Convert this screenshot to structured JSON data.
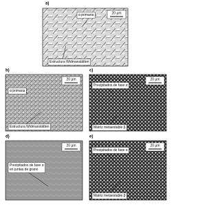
{
  "panels": [
    {
      "label": "a)",
      "scale": "20 µm",
      "notes": [
        [
          "α primaria"
        ],
        [
          "Estructura Widmanstätten"
        ]
      ]
    },
    {
      "label": "b)",
      "scale": "20 µm",
      "notes": [
        [
          "α primaria"
        ],
        [
          "Estructura Widmanstätten"
        ]
      ]
    },
    {
      "label": "c)",
      "scale": "20 µm",
      "notes": [
        [
          "Precipitados de fase α"
        ],
        [
          "Matriz metaestable β"
        ]
      ]
    },
    {
      "label": "d)",
      "scale": "20 µm",
      "notes": [
        [
          "Precipitados de fase α",
          "en juntas de grano"
        ]
      ]
    },
    {
      "label": "e)",
      "scale": "20 µm",
      "notes": [
        [
          "Precipitados de fase α"
        ],
        [
          "Matriz metaestable β"
        ]
      ]
    }
  ]
}
